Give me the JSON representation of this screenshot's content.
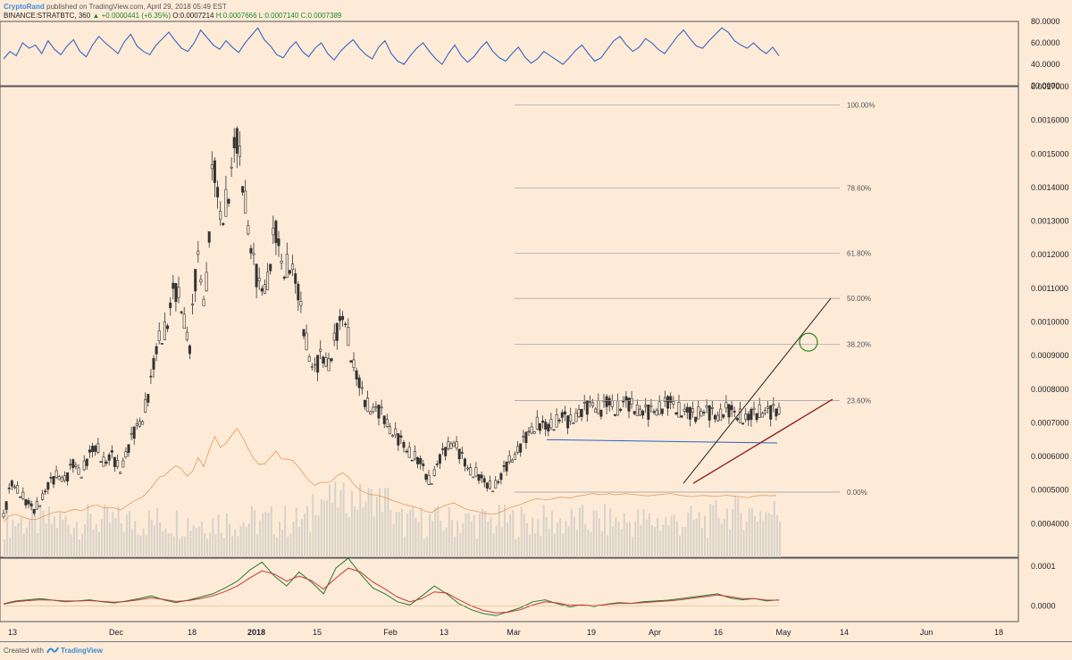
{
  "header": {
    "author": "CryptoRand",
    "published_text": "published on TradingView.com, April 29, 2018 05:49 EST",
    "symbol": "BINANCE:STRATBTC, 360",
    "change": "▲ +0.0000441 (+6.35%)",
    "ohlc": {
      "O": "O:0.0007214",
      "H": "H:0.0007666",
      "L": "L:0.0007140",
      "C": "C:0.0007389"
    }
  },
  "footer": {
    "made_with": "Created with",
    "brand": "TradingView"
  },
  "colors": {
    "background": "#fdebd8",
    "rsi_line": "#3a64c0",
    "candle": "#333333",
    "volume": "#d8d2c8",
    "ma_line": "#e39a5c",
    "fib_line": "#9a9a9a",
    "blue_trendline": "#2e5fb8",
    "black_trendline": "#222222",
    "red_trendline": "#8b1a1a",
    "target_circle": "#2e8b1e"
  },
  "chart_data": [
    {
      "type": "line",
      "name": "rsi-panel",
      "ylim": [
        20,
        80
      ],
      "yticks": [
        "80.0000",
        "60.0000",
        "40.0000",
        "20.0000"
      ],
      "ytick_values": [
        80,
        60,
        40,
        20
      ],
      "series": [
        {
          "values": [
            45,
            52,
            48,
            60,
            55,
            58,
            50,
            62,
            54,
            49,
            57,
            63,
            52,
            47,
            58,
            66,
            60,
            55,
            50,
            61,
            68,
            57,
            52,
            49,
            58,
            64,
            70,
            62,
            55,
            52,
            60,
            72,
            65,
            58,
            54,
            62,
            56,
            51,
            60,
            67,
            74,
            63,
            57,
            49,
            46,
            55,
            61,
            52,
            47,
            55,
            60,
            50,
            44,
            52,
            58,
            63,
            55,
            49,
            45,
            56,
            62,
            50,
            43,
            40,
            48,
            55,
            60,
            52,
            45,
            40,
            50,
            58,
            48,
            42,
            47,
            55,
            61,
            52,
            46,
            43,
            50,
            56,
            47,
            41,
            45,
            52,
            48,
            44,
            40,
            46,
            53,
            58,
            50,
            43,
            46,
            54,
            62,
            66,
            58,
            52,
            56,
            64,
            60,
            54,
            50,
            58,
            66,
            72,
            64,
            57,
            55,
            62,
            68,
            74,
            70,
            62,
            58,
            55,
            60,
            54,
            50,
            56,
            48
          ]
        }
      ]
    },
    {
      "type": "line",
      "name": "price-panel",
      "ylim": [
        0.0003,
        0.0017
      ],
      "yticks": [
        "0.0017000",
        "0.0016000",
        "0.0015000",
        "0.0014000",
        "0.0013000",
        "0.0012000",
        "0.0011000",
        "0.0010000",
        "0.0009000",
        "0.0008000",
        "0.0007000",
        "0.0006000",
        "0.0005000",
        "0.0004000"
      ],
      "ytick_values": [
        0.0017,
        0.0016,
        0.0015,
        0.0014,
        0.0013,
        0.0012,
        0.0011,
        0.001,
        0.0009,
        0.0008,
        0.0007,
        0.0006,
        0.0005,
        0.0004
      ],
      "series": [
        {
          "name": "",
          "x_index": [
            0,
            3,
            6,
            9,
            12,
            15,
            18,
            21,
            24,
            27,
            30,
            33,
            36,
            39,
            42,
            45,
            48,
            51,
            54,
            57,
            60,
            63,
            66,
            69,
            72,
            75,
            78,
            81,
            84,
            87,
            90,
            93,
            96,
            99,
            102,
            105,
            108,
            111,
            114,
            117,
            120,
            123,
            126,
            129,
            132,
            135,
            138,
            141,
            144,
            147,
            150,
            153,
            156,
            159,
            162,
            165,
            168,
            171,
            174,
            177,
            180,
            183,
            186,
            189,
            192,
            195,
            198,
            201,
            204,
            207,
            210,
            213,
            216,
            219,
            222,
            225,
            228,
            231,
            234,
            237,
            240,
            243,
            246,
            249,
            252,
            255,
            258,
            261,
            264,
            267,
            270,
            273,
            276,
            279,
            282,
            285,
            288,
            291,
            294,
            297,
            300
          ],
          "values": [
            0.00042,
            0.00052,
            0.0005,
            0.00046,
            0.00044,
            0.00048,
            0.00052,
            0.00055,
            0.00053,
            0.00058,
            0.00055,
            0.0006,
            0.00063,
            0.00058,
            0.0006,
            0.00056,
            0.00062,
            0.00068,
            0.00072,
            0.00082,
            0.00095,
            0.00098,
            0.0011,
            0.00105,
            0.00092,
            0.0012,
            0.00105,
            0.00148,
            0.0013,
            0.00138,
            0.00155,
            0.0014,
            0.0012,
            0.0011,
            0.00112,
            0.00128,
            0.00115,
            0.00118,
            0.00108,
            0.00095,
            0.00085,
            0.0009,
            0.00088,
            0.00097,
            0.00102,
            0.00088,
            0.0008,
            0.00075,
            0.00074,
            0.00072,
            0.00068,
            0.00065,
            0.00062,
            0.0006,
            0.00057,
            0.00052,
            0.00058,
            0.00062,
            0.00065,
            0.0006,
            0.00056,
            0.00055,
            0.00052,
            0.00051,
            0.00053,
            0.00058,
            0.00061,
            0.00064,
            0.00068,
            0.0007,
            0.00068,
            0.0007,
            0.00072,
            0.0007,
            0.00073,
            0.00074,
            0.00076,
            0.00074,
            0.00076,
            0.00074,
            0.00076,
            0.00075,
            0.00074,
            0.00073,
            0.00074,
            0.00075,
            0.00076,
            0.00074,
            0.00073,
            0.00072,
            0.00074,
            0.00073,
            0.00072,
            0.00074,
            0.00073,
            0.00072,
            0.00071,
            0.00073,
            0.00074,
            0.00073,
            0.00074
          ]
        }
      ],
      "fib_levels": [
        {
          "label": "100.00%",
          "value": 0.001645
        },
        {
          "label": "78.60%",
          "value": 0.001398
        },
        {
          "label": "61.80%",
          "value": 0.001205
        },
        {
          "label": "50.00%",
          "value": 0.00107
        },
        {
          "label": "38.20%",
          "value": 0.000934
        },
        {
          "label": "23.60%",
          "value": 0.000766
        },
        {
          "label": "0.00%",
          "value": 0.000494
        }
      ]
    },
    {
      "type": "line",
      "name": "macd-panel",
      "ylim": [
        -4e-05,
        0.00012
      ],
      "yticks": [
        "0.0001",
        "0.0000"
      ],
      "ytick_values": [
        0.0001,
        0.0
      ],
      "series": [
        {
          "name": "",
          "values": [
            5e-06,
            1.2e-05,
            1.5e-05,
            1.8e-05,
            1.4e-05,
            1e-05,
            1.2e-05,
            1.5e-05,
            1e-05,
            7e-06,
            1.2e-05,
            1.8e-05,
            2.5e-05,
            1.5e-05,
            8e-06,
            1.4e-05,
            2.2e-05,
            3e-05,
            4.5e-05,
            6.2e-05,
            9e-05,
            0.00011,
            7.5e-05,
            5e-05,
            8.5e-05,
            6e-05,
            3e-05,
            9.5e-05,
            0.00012,
            8e-05,
            4.5e-05,
            3e-05,
            1e-05,
            2e-06,
            2.5e-05,
            5e-05,
            3e-05,
            5e-06,
            -1e-05,
            -2e-05,
            -2.5e-05,
            -1.5e-05,
            -5e-06,
            1e-05,
            1.5e-05,
            5e-06,
            -3e-06,
            2e-06,
            -2e-06,
            4e-06,
            8e-06,
            6e-06,
            1e-05,
            1.2e-05,
            1.4e-05,
            1.8e-05,
            2.2e-05,
            2.6e-05,
            3e-05,
            2e-05,
            1.5e-05,
            1.8e-05,
            1.2e-05,
            1.5e-05
          ]
        },
        {
          "name": "",
          "values": [
            4e-06,
            1e-05,
            1.3e-05,
            1.5e-05,
            1.4e-05,
            1.2e-05,
            1.2e-05,
            1.3e-05,
            1.1e-05,
            9e-06,
            1.1e-05,
            1.5e-05,
            2e-05,
            1.6e-05,
            1.1e-05,
            1.3e-05,
            1.8e-05,
            2.5e-05,
            3.6e-05,
            5e-05,
            7e-05,
            8.8e-05,
            8e-05,
            6.2e-05,
            7.5e-05,
            6.4e-05,
            4.2e-05,
            7e-05,
            9.5e-05,
            8.5e-05,
            6e-05,
            4.2e-05,
            2.2e-05,
            1e-05,
            1.8e-05,
            3.5e-05,
            3.2e-05,
            1.5e-05,
            0.0,
            -1.2e-05,
            -1.8e-05,
            -1.6e-05,
            -1e-05,
            2e-06,
            1e-05,
            7e-06,
            1e-06,
            2e-06,
            0.0,
            3e-06,
            6e-06,
            6e-06,
            8e-06,
            1e-05,
            1.2e-05,
            1.5e-05,
            1.9e-05,
            2.3e-05,
            2.7e-05,
            2.3e-05,
            1.8e-05,
            1.8e-05,
            1.4e-05,
            1.4e-05
          ]
        }
      ]
    },
    {
      "type": "axis",
      "name": "time-axis",
      "ticks": [
        {
          "label": "13",
          "bold": false
        },
        {
          "label": "Dec",
          "bold": false
        },
        {
          "label": "18",
          "bold": false
        },
        {
          "label": "2018",
          "bold": true
        },
        {
          "label": "15",
          "bold": false
        },
        {
          "label": "Feb",
          "bold": false
        },
        {
          "label": "13",
          "bold": false
        },
        {
          "label": "Mar",
          "bold": false
        },
        {
          "label": "19",
          "bold": false
        },
        {
          "label": "Apr",
          "bold": false
        },
        {
          "label": "16",
          "bold": false
        },
        {
          "label": "May",
          "bold": false
        },
        {
          "label": "14",
          "bold": false
        },
        {
          "label": "Jun",
          "bold": false
        },
        {
          "label": "18",
          "bold": false
        }
      ]
    }
  ]
}
